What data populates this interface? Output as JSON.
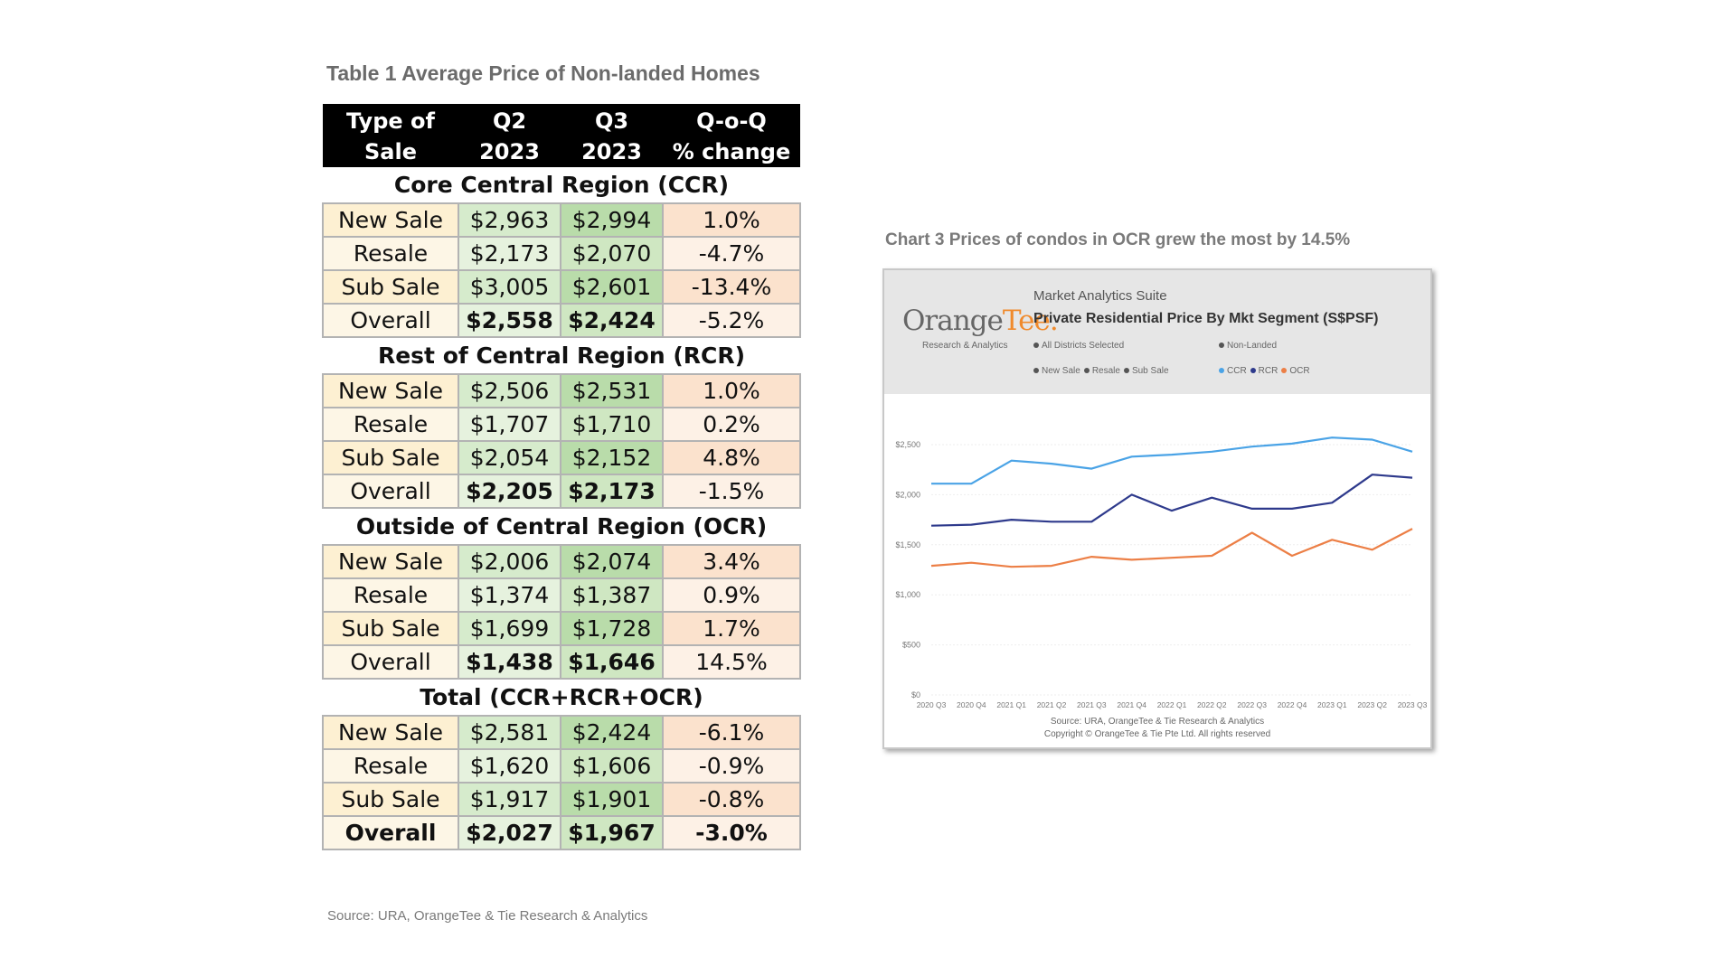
{
  "table": {
    "title": "Table 1 Average Price of Non-landed Homes",
    "headers": [
      [
        "Type of",
        "Sale"
      ],
      [
        "Q2",
        "2023"
      ],
      [
        "Q3",
        "2023"
      ],
      [
        "Q-o-Q",
        "% change"
      ]
    ],
    "segments": [
      {
        "name": "Core Central Region (CCR)",
        "rows": [
          {
            "type": "New Sale",
            "q2": "$2,963",
            "q3": "$2,994",
            "chg": "1.0%"
          },
          {
            "type": "Resale",
            "q2": "$2,173",
            "q3": "$2,070",
            "chg": "-4.7%"
          },
          {
            "type": "Sub Sale",
            "q2": "$3,005",
            "q3": "$2,601",
            "chg": "-13.4%"
          },
          {
            "type": "Overall",
            "q2": "$2,558",
            "q3": "$2,424",
            "chg": "-5.2%"
          }
        ]
      },
      {
        "name": "Rest of Central Region (RCR)",
        "rows": [
          {
            "type": "New Sale",
            "q2": "$2,506",
            "q3": "$2,531",
            "chg": "1.0%"
          },
          {
            "type": "Resale",
            "q2": "$1,707",
            "q3": "$1,710",
            "chg": "0.2%"
          },
          {
            "type": "Sub Sale",
            "q2": "$2,054",
            "q3": "$2,152",
            "chg": "4.8%"
          },
          {
            "type": "Overall",
            "q2": "$2,205",
            "q3": "$2,173",
            "chg": "-1.5%"
          }
        ]
      },
      {
        "name": "Outside of Central Region (OCR)",
        "rows": [
          {
            "type": "New Sale",
            "q2": "$2,006",
            "q3": "$2,074",
            "chg": "3.4%"
          },
          {
            "type": "Resale",
            "q2": "$1,374",
            "q3": "$1,387",
            "chg": "0.9%"
          },
          {
            "type": "Sub Sale",
            "q2": "$1,699",
            "q3": "$1,728",
            "chg": "1.7%"
          },
          {
            "type": "Overall",
            "q2": "$1,438",
            "q3": "$1,646",
            "chg": "14.5%"
          }
        ]
      },
      {
        "name": "Total (CCR+RCR+OCR)",
        "rows": [
          {
            "type": "New Sale",
            "q2": "$2,581",
            "q3": "$2,424",
            "chg": "-6.1%"
          },
          {
            "type": "Resale",
            "q2": "$1,620",
            "q3": "$1,606",
            "chg": "-0.9%"
          },
          {
            "type": "Sub Sale",
            "q2": "$1,917",
            "q3": "$1,901",
            "chg": "-0.8%"
          },
          {
            "type": "Overall",
            "q2": "$2,027",
            "q3": "$1,967",
            "chg": "-3.0%"
          }
        ]
      }
    ],
    "source": "Source: URA, OrangeTee & Tie Research & Analytics"
  },
  "chart_header": {
    "section_title": "Chart 3 Prices of condos in OCR grew the most by 14.5%",
    "logo_main": "Orange",
    "logo_tee": "Tee.",
    "logo_sub": "Research & Analytics",
    "suite": "Market Analytics Suite",
    "title": "Private Residential Price By Mkt Segment (S$PSF)",
    "filter_districts": "All Districts Selected",
    "filter_type": "Non-Landed",
    "sale_filters": [
      "New Sale",
      "Resale",
      "Sub Sale"
    ],
    "source_line1": "Source: URA, OrangeTee & Tie Research & Analytics",
    "source_line2": "Copyright © OrangeTee & Tie Pte Ltd. All rights reserved"
  },
  "colors": {
    "ccr": "#4aa3e6",
    "rcr": "#2e3a8c",
    "ocr": "#ec7f46",
    "header_bg": "#e6e6e6",
    "filter_dot": "#555555"
  },
  "chart_data": {
    "type": "line",
    "title": "Private Residential Price By Mkt Segment (S$PSF)",
    "categories": [
      "2020 Q3",
      "2020 Q4",
      "2021 Q1",
      "2021 Q2",
      "2021 Q3",
      "2021 Q4",
      "2022 Q1",
      "2022 Q2",
      "2022 Q3",
      "2022 Q4",
      "2023 Q1",
      "2023 Q2",
      "2023 Q3"
    ],
    "series": [
      {
        "name": "CCR",
        "values": [
          2110,
          2110,
          2340,
          2310,
          2260,
          2380,
          2400,
          2430,
          2480,
          2510,
          2570,
          2550,
          2430
        ]
      },
      {
        "name": "RCR",
        "values": [
          1690,
          1700,
          1750,
          1730,
          1730,
          2000,
          1840,
          1970,
          1860,
          1860,
          1920,
          2200,
          2170
        ]
      },
      {
        "name": "OCR",
        "values": [
          1290,
          1320,
          1280,
          1290,
          1380,
          1350,
          1370,
          1390,
          1620,
          1390,
          1550,
          1450,
          1660
        ]
      }
    ],
    "yticks": [
      "$0",
      "$500",
      "$1,000",
      "$1,500",
      "$2,000",
      "$2,500"
    ],
    "ylim": [
      0,
      2500
    ],
    "legend": [
      "CCR",
      "RCR",
      "OCR"
    ],
    "legend_position": "top"
  }
}
